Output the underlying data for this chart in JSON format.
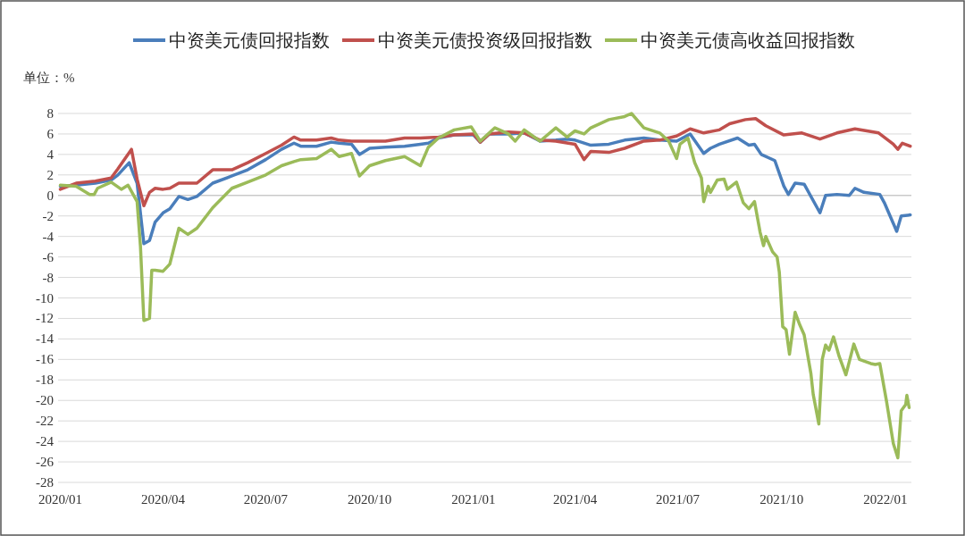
{
  "chart_data": {
    "type": "line",
    "ylabel": "单位：%",
    "xlim": [
      "2019-12-30",
      "2022-01-24"
    ],
    "xticks": [
      {
        "value": "2020-01-01",
        "label": "2020/01"
      },
      {
        "value": "2020-04-01",
        "label": "2020/04"
      },
      {
        "value": "2020-07-01",
        "label": "2020/07"
      },
      {
        "value": "2020-10-01",
        "label": "2020/10"
      },
      {
        "value": "2021-01-01",
        "label": "2021/01"
      },
      {
        "value": "2021-04-01",
        "label": "2021/04"
      },
      {
        "value": "2021-07-01",
        "label": "2021/07"
      },
      {
        "value": "2021-10-01",
        "label": "2021/10"
      },
      {
        "value": "2022-01-01",
        "label": "2022/01"
      }
    ],
    "ylim": [
      -28,
      8
    ],
    "yticks": [
      -28,
      -26,
      -24,
      -22,
      -20,
      -18,
      -16,
      -14,
      -12,
      -10,
      -8,
      -6,
      -4,
      -2,
      0,
      2,
      4,
      6,
      8
    ],
    "grid": "y",
    "legend": "top",
    "marker": "none",
    "line_style": "solid",
    "series": [
      {
        "name": "中资美元债回报指数",
        "color": "#4a7ebb",
        "x": [
          "2020-01-01",
          "2020-01-15",
          "2020-02-01",
          "2020-02-15",
          "2020-02-21",
          "2020-03-02",
          "2020-03-09",
          "2020-03-15",
          "2020-03-20",
          "2020-03-25",
          "2020-04-01",
          "2020-04-07",
          "2020-04-15",
          "2020-04-23",
          "2020-05-01",
          "2020-05-15",
          "2020-06-01",
          "2020-06-15",
          "2020-07-01",
          "2020-07-15",
          "2020-07-26",
          "2020-08-01",
          "2020-08-15",
          "2020-08-28",
          "2020-09-04",
          "2020-09-15",
          "2020-09-22",
          "2020-10-01",
          "2020-10-15",
          "2020-11-01",
          "2020-11-15",
          "2020-11-22",
          "2020-12-01",
          "2020-12-15",
          "2021-01-01",
          "2021-01-07",
          "2021-01-15",
          "2021-02-01",
          "2021-02-15",
          "2021-03-01",
          "2021-03-15",
          "2021-03-25",
          "2021-04-01",
          "2021-04-15",
          "2021-05-01",
          "2021-05-15",
          "2021-06-01",
          "2021-06-15",
          "2021-06-30",
          "2021-07-12",
          "2021-07-24",
          "2021-07-30",
          "2021-08-07",
          "2021-08-23",
          "2021-09-02",
          "2021-09-07",
          "2021-09-13",
          "2021-09-25",
          "2021-10-03",
          "2021-10-07",
          "2021-10-13",
          "2021-10-21",
          "2021-11-04",
          "2021-11-09",
          "2021-11-19",
          "2021-11-30",
          "2021-12-05",
          "2021-12-13",
          "2021-12-27",
          "2021-12-31",
          "2022-01-11",
          "2022-01-15",
          "2022-01-23"
        ],
        "values": [
          0.9,
          1.0,
          1.2,
          1.5,
          2.0,
          3.2,
          1.2,
          -4.7,
          -4.4,
          -2.6,
          -1.7,
          -1.3,
          -0.1,
          -0.4,
          -0.1,
          1.2,
          1.9,
          2.5,
          3.5,
          4.5,
          5.1,
          4.8,
          4.8,
          5.2,
          5.1,
          5.0,
          4.0,
          4.6,
          4.7,
          4.8,
          5.0,
          5.1,
          5.6,
          5.9,
          5.9,
          5.2,
          6.0,
          6.0,
          6.1,
          5.3,
          5.4,
          5.5,
          5.4,
          4.9,
          5.0,
          5.4,
          5.6,
          5.4,
          5.3,
          6.0,
          4.1,
          4.6,
          5.0,
          5.6,
          4.9,
          5.0,
          4.0,
          3.4,
          0.9,
          0.1,
          1.2,
          1.1,
          -1.7,
          0.0,
          0.1,
          0.0,
          0.7,
          0.3,
          0.1,
          -0.7,
          -3.5,
          -2.0,
          -1.9
        ]
      },
      {
        "name": "中资美元债投资级回报指数",
        "color": "#c0504d",
        "x": [
          "2020-01-01",
          "2020-01-15",
          "2020-02-01",
          "2020-02-15",
          "2020-02-21",
          "2020-03-04",
          "2020-03-09",
          "2020-03-15",
          "2020-03-20",
          "2020-03-25",
          "2020-04-01",
          "2020-04-07",
          "2020-04-15",
          "2020-05-01",
          "2020-05-15",
          "2020-06-01",
          "2020-06-15",
          "2020-07-01",
          "2020-07-15",
          "2020-07-26",
          "2020-08-01",
          "2020-08-15",
          "2020-08-28",
          "2020-09-04",
          "2020-09-15",
          "2020-10-01",
          "2020-10-15",
          "2020-11-01",
          "2020-11-15",
          "2020-12-01",
          "2020-12-15",
          "2021-01-01",
          "2021-01-07",
          "2021-01-15",
          "2021-02-01",
          "2021-02-15",
          "2021-03-01",
          "2021-03-15",
          "2021-04-01",
          "2021-04-09",
          "2021-04-15",
          "2021-05-01",
          "2021-05-15",
          "2021-06-01",
          "2021-06-15",
          "2021-06-30",
          "2021-07-12",
          "2021-07-24",
          "2021-08-07",
          "2021-08-16",
          "2021-08-30",
          "2021-09-08",
          "2021-09-17",
          "2021-10-03",
          "2021-10-19",
          "2021-11-04",
          "2021-11-19",
          "2021-12-05",
          "2021-12-26",
          "2022-01-08",
          "2022-01-12",
          "2022-01-16",
          "2022-01-23"
        ],
        "values": [
          0.6,
          1.2,
          1.4,
          1.7,
          2.6,
          4.5,
          1.6,
          -1.0,
          0.3,
          0.7,
          0.6,
          0.7,
          1.2,
          1.2,
          2.5,
          2.5,
          3.2,
          4.1,
          4.9,
          5.7,
          5.4,
          5.4,
          5.6,
          5.4,
          5.3,
          5.3,
          5.3,
          5.6,
          5.6,
          5.7,
          5.9,
          6.0,
          5.2,
          6.0,
          6.2,
          6.1,
          5.4,
          5.3,
          5.0,
          3.5,
          4.3,
          4.2,
          4.6,
          5.3,
          5.4,
          5.8,
          6.5,
          6.1,
          6.4,
          7.0,
          7.4,
          7.5,
          6.8,
          5.9,
          6.1,
          5.5,
          6.1,
          6.5,
          6.1,
          5.0,
          4.5,
          5.1,
          4.8
        ]
      },
      {
        "name": "中资美元债高收益回报指数",
        "color": "#9bbb59",
        "x": [
          "2020-01-01",
          "2020-01-15",
          "2020-01-27",
          "2020-01-31",
          "2020-02-03",
          "2020-02-15",
          "2020-02-24",
          "2020-03-01",
          "2020-03-09",
          "2020-03-12",
          "2020-03-15",
          "2020-03-20",
          "2020-03-22",
          "2020-03-25",
          "2020-04-01",
          "2020-04-07",
          "2020-04-15",
          "2020-04-23",
          "2020-05-01",
          "2020-05-15",
          "2020-06-01",
          "2020-06-15",
          "2020-07-01",
          "2020-07-15",
          "2020-07-26",
          "2020-08-01",
          "2020-08-15",
          "2020-08-28",
          "2020-09-04",
          "2020-09-15",
          "2020-09-22",
          "2020-10-01",
          "2020-10-15",
          "2020-11-01",
          "2020-11-15",
          "2020-11-22",
          "2020-12-01",
          "2020-12-15",
          "2020-12-30",
          "2021-01-07",
          "2021-01-15",
          "2021-01-20",
          "2021-02-01",
          "2021-02-07",
          "2021-02-15",
          "2021-03-01",
          "2021-03-15",
          "2021-03-25",
          "2021-04-01",
          "2021-04-09",
          "2021-04-15",
          "2021-05-01",
          "2021-05-15",
          "2021-05-21",
          "2021-06-01",
          "2021-06-15",
          "2021-06-23",
          "2021-06-30",
          "2021-07-03",
          "2021-07-10",
          "2021-07-16",
          "2021-07-22",
          "2021-07-24",
          "2021-07-28",
          "2021-07-30",
          "2021-08-05",
          "2021-08-11",
          "2021-08-14",
          "2021-08-22",
          "2021-08-28",
          "2021-09-02",
          "2021-09-07",
          "2021-09-12",
          "2021-09-15",
          "2021-09-17",
          "2021-09-23",
          "2021-09-27",
          "2021-09-29",
          "2021-10-02",
          "2021-10-05",
          "2021-10-08",
          "2021-10-13",
          "2021-10-17",
          "2021-10-21",
          "2021-10-27",
          "2021-10-29",
          "2021-11-03",
          "2021-11-06",
          "2021-11-09",
          "2021-11-12",
          "2021-11-16",
          "2021-11-21",
          "2021-11-27",
          "2021-12-04",
          "2021-12-09",
          "2021-12-19",
          "2021-12-23",
          "2021-12-27",
          "2022-01-02",
          "2022-01-08",
          "2022-01-12",
          "2022-01-15",
          "2022-01-19",
          "2022-01-20",
          "2022-01-22"
        ],
        "values": [
          1.0,
          0.9,
          0.1,
          0.1,
          0.7,
          1.3,
          0.6,
          1.0,
          -0.6,
          -5.0,
          -12.2,
          -12.0,
          -7.3,
          -7.3,
          -7.4,
          -6.7,
          -3.2,
          -3.8,
          -3.2,
          -1.2,
          0.7,
          1.3,
          2.0,
          2.9,
          3.3,
          3.5,
          3.6,
          4.5,
          3.8,
          4.1,
          1.9,
          2.9,
          3.4,
          3.8,
          2.9,
          4.7,
          5.6,
          6.4,
          6.7,
          5.3,
          6.1,
          6.6,
          6.0,
          5.3,
          6.4,
          5.3,
          6.6,
          5.7,
          6.3,
          6.0,
          6.6,
          7.4,
          7.7,
          8.0,
          6.6,
          6.1,
          5.3,
          3.6,
          5.0,
          5.6,
          3.2,
          1.7,
          -0.6,
          0.9,
          0.3,
          1.5,
          1.6,
          0.6,
          1.3,
          -0.7,
          -1.3,
          -0.6,
          -3.6,
          -4.9,
          -4.0,
          -5.5,
          -6.0,
          -7.5,
          -12.8,
          -13.1,
          -15.5,
          -11.4,
          -12.6,
          -13.6,
          -17.4,
          -19.4,
          -22.3,
          -16.0,
          -14.6,
          -15.1,
          -13.8,
          -15.7,
          -17.5,
          -14.5,
          -16.0,
          -16.4,
          -16.5,
          -16.4,
          -20.1,
          -24.2,
          -25.6,
          -21.0,
          -20.4,
          -19.5,
          -20.7
        ]
      }
    ]
  }
}
